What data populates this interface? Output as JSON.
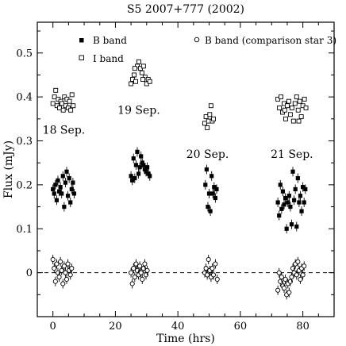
{
  "chart_data": {
    "type": "scatter",
    "title": "S5 2007+777 (2002)",
    "xlabel": "Time (hrs)",
    "ylabel": "Flux (mJy)",
    "xlim": [
      -5,
      90
    ],
    "ylim": [
      -0.1,
      0.57
    ],
    "x_ticks": [
      0,
      20,
      40,
      60,
      80
    ],
    "y_ticks": [
      0,
      0.1,
      0.2,
      0.3,
      0.4,
      0.5
    ],
    "x_tick_labels": [
      "0",
      "20",
      "40",
      "60",
      "80"
    ],
    "y_tick_labels": [
      "0",
      "0.1",
      "0.2",
      "0.3",
      "0.4",
      "0.5"
    ],
    "reference_line": {
      "y": 0,
      "style": "dashed"
    },
    "legend": {
      "b_band": "B band",
      "i_band": "I band",
      "comparison": "B band (comparison star 3)"
    },
    "annotations": [
      {
        "text": "18 Sep.",
        "x": 3.5,
        "y": 0.325
      },
      {
        "text": "19 Sep.",
        "x": 27.5,
        "y": 0.37
      },
      {
        "text": "20 Sep.",
        "x": 49.5,
        "y": 0.27
      },
      {
        "text": "21 Sep.",
        "x": 76.5,
        "y": 0.27
      }
    ],
    "series": [
      {
        "name": "B band",
        "marker": "filled-square",
        "error_bars": true,
        "points": [
          [
            0.0,
            0.19
          ],
          [
            0.4,
            0.18
          ],
          [
            0.8,
            0.2
          ],
          [
            1.2,
            0.165
          ],
          [
            1.6,
            0.21
          ],
          [
            2.0,
            0.185
          ],
          [
            2.4,
            0.195
          ],
          [
            2.8,
            0.18
          ],
          [
            3.2,
            0.22
          ],
          [
            3.6,
            0.15
          ],
          [
            4.0,
            0.205
          ],
          [
            4.4,
            0.23
          ],
          [
            4.8,
            0.175
          ],
          [
            5.2,
            0.215
          ],
          [
            5.6,
            0.16
          ],
          [
            6.0,
            0.19
          ],
          [
            6.4,
            0.205
          ],
          [
            6.8,
            0.18
          ],
          [
            25.0,
            0.22
          ],
          [
            25.4,
            0.21
          ],
          [
            25.8,
            0.26
          ],
          [
            26.2,
            0.215
          ],
          [
            26.6,
            0.245
          ],
          [
            27.0,
            0.275
          ],
          [
            27.4,
            0.225
          ],
          [
            27.8,
            0.24
          ],
          [
            28.2,
            0.265
          ],
          [
            28.6,
            0.25
          ],
          [
            29.0,
            0.245
          ],
          [
            29.4,
            0.235
          ],
          [
            29.8,
            0.23
          ],
          [
            30.2,
            0.24
          ],
          [
            30.6,
            0.225
          ],
          [
            31.0,
            0.22
          ],
          [
            48.8,
            0.2
          ],
          [
            49.2,
            0.235
          ],
          [
            49.6,
            0.15
          ],
          [
            50.0,
            0.18
          ],
          [
            50.4,
            0.14
          ],
          [
            50.8,
            0.22
          ],
          [
            51.2,
            0.18
          ],
          [
            51.6,
            0.195
          ],
          [
            52.0,
            0.17
          ],
          [
            52.4,
            0.19
          ],
          [
            72.0,
            0.16
          ],
          [
            72.4,
            0.13
          ],
          [
            72.8,
            0.2
          ],
          [
            73.2,
            0.145
          ],
          [
            73.6,
            0.185
          ],
          [
            74.0,
            0.155
          ],
          [
            74.4,
            0.17
          ],
          [
            74.8,
            0.1
          ],
          [
            75.2,
            0.16
          ],
          [
            75.6,
            0.175
          ],
          [
            76.0,
            0.15
          ],
          [
            76.4,
            0.11
          ],
          [
            76.8,
            0.23
          ],
          [
            77.2,
            0.165
          ],
          [
            77.6,
            0.19
          ],
          [
            78.0,
            0.105
          ],
          [
            78.4,
            0.215
          ],
          [
            78.8,
            0.16
          ],
          [
            79.2,
            0.175
          ],
          [
            79.6,
            0.14
          ],
          [
            80.0,
            0.195
          ],
          [
            80.4,
            0.16
          ],
          [
            80.8,
            0.19
          ]
        ]
      },
      {
        "name": "I band",
        "marker": "open-square",
        "error_bars": false,
        "points": [
          [
            0.0,
            0.385
          ],
          [
            0.5,
            0.4
          ],
          [
            0.9,
            0.415
          ],
          [
            1.3,
            0.38
          ],
          [
            1.7,
            0.395
          ],
          [
            2.1,
            0.375
          ],
          [
            2.5,
            0.39
          ],
          [
            2.9,
            0.385
          ],
          [
            3.3,
            0.37
          ],
          [
            3.7,
            0.4
          ],
          [
            4.1,
            0.38
          ],
          [
            4.5,
            0.395
          ],
          [
            4.9,
            0.375
          ],
          [
            5.3,
            0.39
          ],
          [
            5.7,
            0.37
          ],
          [
            6.1,
            0.405
          ],
          [
            6.5,
            0.38
          ],
          [
            25.0,
            0.43
          ],
          [
            25.5,
            0.44
          ],
          [
            26.0,
            0.45
          ],
          [
            26.5,
            0.435
          ],
          [
            27.0,
            0.47
          ],
          [
            27.5,
            0.48
          ],
          [
            28.0,
            0.465
          ],
          [
            28.5,
            0.455
          ],
          [
            29.0,
            0.47
          ],
          [
            29.5,
            0.445
          ],
          [
            30.0,
            0.43
          ],
          [
            30.5,
            0.44
          ],
          [
            31.0,
            0.435
          ],
          [
            26.2,
            0.465
          ],
          [
            28.8,
            0.44
          ],
          [
            48.6,
            0.34
          ],
          [
            49.0,
            0.355
          ],
          [
            49.4,
            0.33
          ],
          [
            49.8,
            0.345
          ],
          [
            50.2,
            0.36
          ],
          [
            50.6,
            0.38
          ],
          [
            51.0,
            0.345
          ],
          [
            51.4,
            0.35
          ],
          [
            72.0,
            0.395
          ],
          [
            72.5,
            0.375
          ],
          [
            73.0,
            0.4
          ],
          [
            73.5,
            0.365
          ],
          [
            74.0,
            0.385
          ],
          [
            74.5,
            0.35
          ],
          [
            75.0,
            0.38
          ],
          [
            75.5,
            0.39
          ],
          [
            76.0,
            0.36
          ],
          [
            76.5,
            0.375
          ],
          [
            77.0,
            0.345
          ],
          [
            77.5,
            0.385
          ],
          [
            78.0,
            0.4
          ],
          [
            78.5,
            0.37
          ],
          [
            79.0,
            0.39
          ],
          [
            79.5,
            0.355
          ],
          [
            80.0,
            0.38
          ],
          [
            80.5,
            0.395
          ],
          [
            81.0,
            0.375
          ],
          [
            74.2,
            0.37
          ],
          [
            78.7,
            0.345
          ]
        ]
      },
      {
        "name": "B band (comparison star 3)",
        "marker": "open-circle",
        "error_bars": true,
        "points": [
          [
            0.0,
            0.03
          ],
          [
            0.4,
            0.01
          ],
          [
            0.8,
            -0.02
          ],
          [
            1.2,
            0.02
          ],
          [
            1.6,
            0.0
          ],
          [
            2.0,
            -0.01
          ],
          [
            2.4,
            0.025
          ],
          [
            2.8,
            0.005
          ],
          [
            3.2,
            -0.025
          ],
          [
            3.6,
            0.015
          ],
          [
            4.0,
            0.0
          ],
          [
            4.4,
            -0.015
          ],
          [
            4.8,
            0.02
          ],
          [
            5.2,
            0.005
          ],
          [
            5.6,
            -0.005
          ],
          [
            6.0,
            0.01
          ],
          [
            25.0,
            0.0
          ],
          [
            25.4,
            -0.025
          ],
          [
            25.8,
            0.01
          ],
          [
            26.2,
            -0.01
          ],
          [
            26.6,
            0.02
          ],
          [
            27.0,
            0.005
          ],
          [
            27.4,
            -0.005
          ],
          [
            27.8,
            0.015
          ],
          [
            28.2,
            0.0
          ],
          [
            28.6,
            -0.015
          ],
          [
            29.0,
            0.01
          ],
          [
            29.4,
            0.02
          ],
          [
            29.8,
            -0.005
          ],
          [
            30.2,
            0.005
          ],
          [
            48.6,
            0.0
          ],
          [
            49.0,
            0.01
          ],
          [
            49.4,
            -0.005
          ],
          [
            49.8,
            0.03
          ],
          [
            50.2,
            0.005
          ],
          [
            50.6,
            -0.01
          ],
          [
            51.0,
            0.01
          ],
          [
            51.4,
            -0.005
          ],
          [
            52.0,
            0.02
          ],
          [
            52.6,
            -0.015
          ],
          [
            72.0,
            -0.04
          ],
          [
            72.4,
            0.0
          ],
          [
            72.8,
            -0.02
          ],
          [
            73.2,
            -0.01
          ],
          [
            73.6,
            -0.03
          ],
          [
            74.0,
            -0.035
          ],
          [
            74.4,
            -0.015
          ],
          [
            74.8,
            -0.05
          ],
          [
            75.2,
            -0.025
          ],
          [
            75.6,
            -0.045
          ],
          [
            76.0,
            -0.02
          ],
          [
            76.4,
            -0.01
          ],
          [
            76.8,
            0.01
          ],
          [
            77.2,
            0.0
          ],
          [
            77.6,
            0.02
          ],
          [
            78.0,
            -0.005
          ],
          [
            78.4,
            0.025
          ],
          [
            78.8,
            0.005
          ],
          [
            79.2,
            -0.015
          ],
          [
            79.6,
            0.01
          ],
          [
            80.0,
            -0.005
          ],
          [
            80.4,
            0.015
          ]
        ]
      }
    ]
  }
}
